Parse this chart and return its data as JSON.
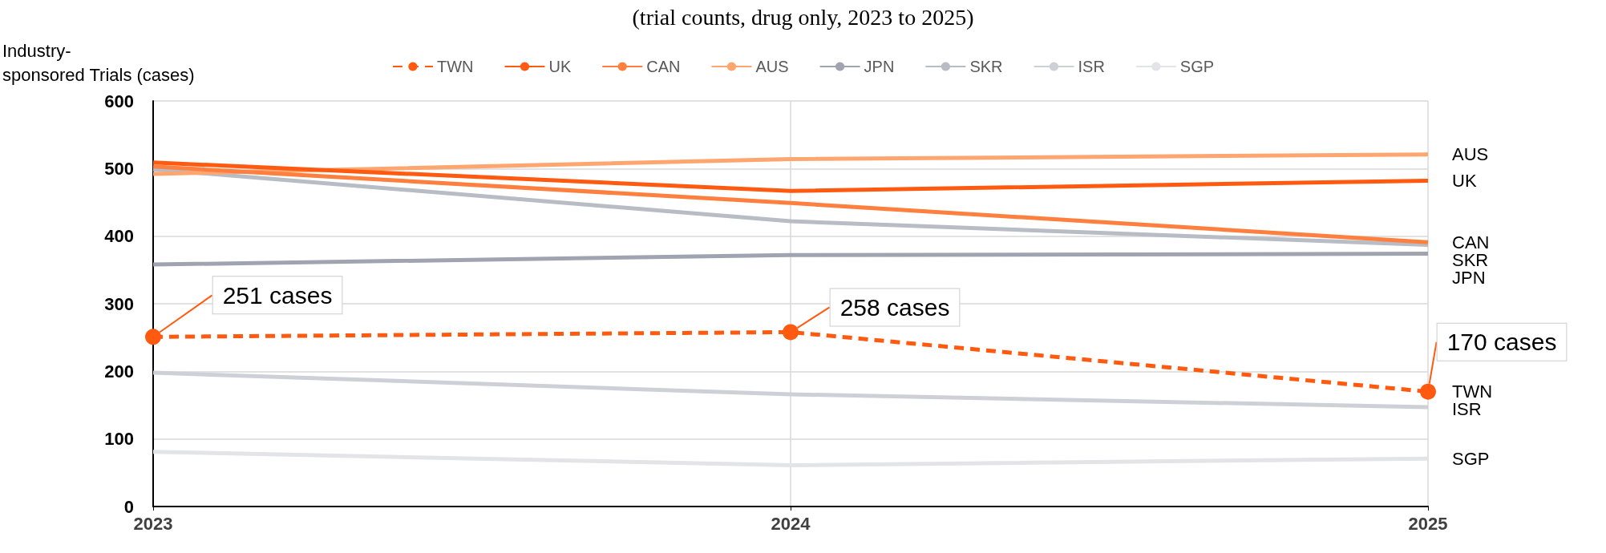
{
  "chart_data": {
    "type": "line",
    "title": "(trial counts, drug only, 2023 to 2025)",
    "ylabel": "Industry-sponsored Trials (cases)",
    "categories": [
      "2023",
      "2024",
      "2025"
    ],
    "ylim": [
      0,
      600
    ],
    "yticks": [
      0,
      100,
      200,
      300,
      400,
      500,
      600
    ],
    "grid": true,
    "legend": "top",
    "marker": "none",
    "line_style": "solid",
    "series": [
      {
        "name": "TWN",
        "color": "#ff5a0f",
        "values": [
          251,
          258,
          170
        ],
        "line_style": "dashed",
        "marker": "circle",
        "value_labels": [
          "251 cases",
          "258 cases",
          "170 cases"
        ]
      },
      {
        "name": "UK",
        "color": "#ff5a0f",
        "values": [
          509,
          467,
          482
        ]
      },
      {
        "name": "CAN",
        "color": "#ff7f3f",
        "values": [
          503,
          449,
          391
        ]
      },
      {
        "name": "AUS",
        "color": "#ffa56f",
        "values": [
          492,
          514,
          521
        ]
      },
      {
        "name": "JPN",
        "color": "#a0a4b0",
        "values": [
          358,
          372,
          374
        ]
      },
      {
        "name": "SKR",
        "color": "#b8bcc4",
        "values": [
          499,
          422,
          387
        ]
      },
      {
        "name": "ISR",
        "color": "#cdd1d7",
        "values": [
          198,
          166,
          147
        ]
      },
      {
        "name": "SGP",
        "color": "#e2e4e7",
        "values": [
          81,
          61,
          71
        ]
      }
    ]
  }
}
